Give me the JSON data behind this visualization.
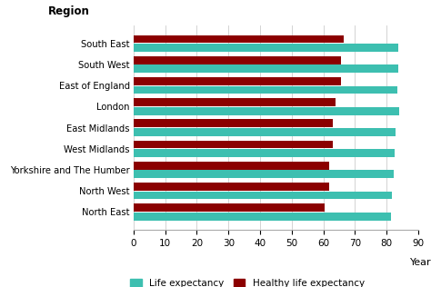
{
  "regions": [
    "South East",
    "South West",
    "East of England",
    "London",
    "East Midlands",
    "West Midlands",
    "Yorkshire and The Humber",
    "North West",
    "North East"
  ],
  "life_expectancy": [
    83.7,
    83.6,
    83.5,
    84.0,
    82.8,
    82.6,
    82.2,
    81.8,
    81.5
  ],
  "healthy_life_expectancy": [
    66.5,
    65.5,
    65.5,
    64.0,
    63.0,
    63.0,
    62.0,
    62.0,
    60.5
  ],
  "le_color": "#3DBFB0",
  "hle_color": "#8B0000",
  "xlabel": "Years",
  "xlim": [
    0,
    90
  ],
  "xticks": [
    0,
    10,
    20,
    30,
    40,
    50,
    60,
    70,
    80,
    90
  ],
  "legend_le": "Life expectancy",
  "legend_hle": "Healthy life expectancy",
  "background_color": "#ffffff",
  "grid_color": "#cccccc",
  "title": "Region"
}
